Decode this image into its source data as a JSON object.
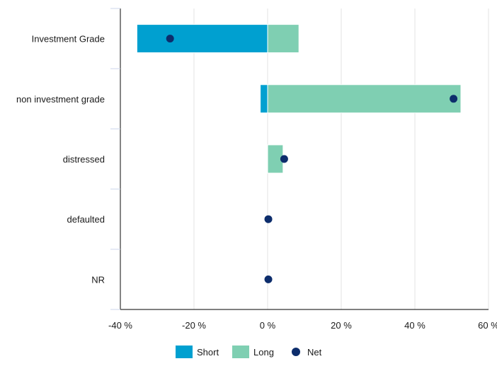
{
  "chart_data": {
    "type": "bar",
    "orientation": "horizontal",
    "stacked": true,
    "categories": [
      "Investment Grade",
      "non investment grade",
      "distressed",
      "defaulted",
      "NR"
    ],
    "series": [
      {
        "name": "Short",
        "type": "bar",
        "color": "#00a0d0",
        "values": [
          -35.5,
          -2,
          0,
          0,
          0
        ]
      },
      {
        "name": "Long",
        "type": "bar",
        "color": "#7fcfb2",
        "values": [
          8.5,
          52.5,
          4.2,
          0,
          0
        ]
      },
      {
        "name": "Net",
        "type": "scatter",
        "color": "#0d2d6c",
        "values": [
          -26.5,
          50.5,
          4.5,
          0.2,
          0.2
        ]
      }
    ],
    "xlim": [
      -40,
      60
    ],
    "x_ticks": [
      -40,
      -20,
      0,
      20,
      40,
      60
    ],
    "x_tick_labels": [
      "-40 %",
      "-20 %",
      "0 %",
      "20 %",
      "40 %",
      "60 %"
    ],
    "grid": "vertical",
    "legend": {
      "placement": "bottom",
      "labels": [
        "Short",
        "Long",
        "Net"
      ]
    }
  }
}
